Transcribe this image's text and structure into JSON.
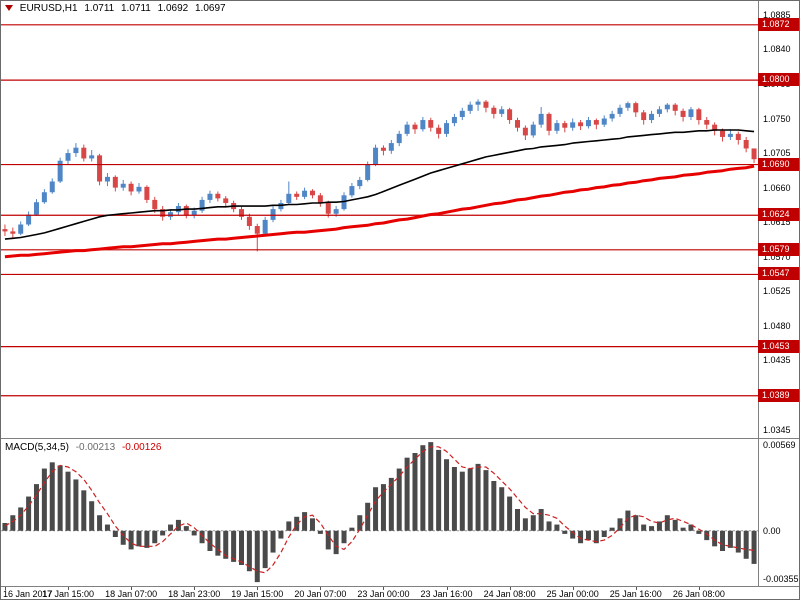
{
  "header": {
    "symbol_period": "EURUSD,H1",
    "open": "1.0711",
    "high": "1.0711",
    "low": "1.0692",
    "close": "1.0697"
  },
  "macd_header": {
    "name": "MACD(5,34,5)",
    "main_value": "-0.00213",
    "signal_value": "-0.00126"
  },
  "colors": {
    "background": "#ffffff",
    "up_candle": "#4f86c6",
    "down_candle": "#d94646",
    "level_line": "#c00000",
    "badge_bg": "#c00000",
    "ma_fast": "#000000",
    "ma_slow": "#e60000",
    "macd_histogram": "#4a4a4a",
    "macd_signal": "#cc2222"
  },
  "chart_data": [
    {
      "type": "candlestick",
      "title": "EURUSD,H1",
      "y_range": [
        1.0334,
        1.0903
      ],
      "y_axis_ticks": [
        "1.0885",
        "1.0840",
        "1.0795",
        "1.0750",
        "1.0705",
        "1.0660",
        "1.0615",
        "1.0570",
        "1.0525",
        "1.0480",
        "1.0435",
        "1.0345"
      ],
      "levels": [
        "1.0872",
        "1.0800",
        "1.0690",
        "1.0624",
        "1.0579",
        "1.0547",
        "1.0453",
        "1.0389"
      ],
      "x_tick_labels": [
        "16 Jan 2017",
        "17 Jan 15:00",
        "18 Jan 07:00",
        "18 Jan 23:00",
        "19 Jan 15:00",
        "20 Jan 07:00",
        "23 Jan 00:00",
        "23 Jan 16:00",
        "24 Jan 08:00",
        "25 Jan 00:00",
        "25 Jan 16:00",
        "26 Jan 08:00"
      ],
      "x_tick_candle_indices": [
        0,
        8,
        16,
        24,
        32,
        40,
        48,
        56,
        64,
        72,
        80,
        88
      ],
      "colors": {
        "up": "#4f86c6",
        "down": "#d94646",
        "level": "#c00000"
      },
      "candles_ohlc": [
        [
          1.0606,
          1.0612,
          1.0597,
          1.0603
        ],
        [
          1.0603,
          1.0608,
          1.0595,
          1.06
        ],
        [
          1.06,
          1.0616,
          1.0598,
          1.0612
        ],
        [
          1.0612,
          1.0629,
          1.061,
          1.0625
        ],
        [
          1.0625,
          1.0645,
          1.0623,
          1.0641
        ],
        [
          1.0641,
          1.0658,
          1.0639,
          1.0654
        ],
        [
          1.0654,
          1.0672,
          1.0652,
          1.0668
        ],
        [
          1.0668,
          1.0699,
          1.0666,
          1.0695
        ],
        [
          1.0695,
          1.071,
          1.069,
          1.0705
        ],
        [
          1.0705,
          1.0718,
          1.07,
          1.0712
        ],
        [
          1.0712,
          1.0716,
          1.0694,
          1.0698
        ],
        [
          1.0698,
          1.0709,
          1.0694,
          1.0702
        ],
        [
          1.0702,
          1.0704,
          1.0663,
          1.0668
        ],
        [
          1.0668,
          1.0679,
          1.0662,
          1.0674
        ],
        [
          1.0674,
          1.0676,
          1.0655,
          1.066
        ],
        [
          1.066,
          1.067,
          1.0656,
          1.0665
        ],
        [
          1.0665,
          1.0668,
          1.065,
          1.0655
        ],
        [
          1.0655,
          1.0666,
          1.0652,
          1.0661
        ],
        [
          1.0661,
          1.0663,
          1.064,
          1.0644
        ],
        [
          1.0644,
          1.0648,
          1.0627,
          1.0632
        ],
        [
          1.0632,
          1.0636,
          1.0617,
          1.0622
        ],
        [
          1.0622,
          1.0632,
          1.0618,
          1.0628
        ],
        [
          1.0628,
          1.064,
          1.0624,
          1.0636
        ],
        [
          1.0636,
          1.0638,
          1.062,
          1.0624
        ],
        [
          1.0624,
          1.0634,
          1.062,
          1.063
        ],
        [
          1.063,
          1.0648,
          1.0627,
          1.0644
        ],
        [
          1.0644,
          1.0656,
          1.064,
          1.0652
        ],
        [
          1.0652,
          1.0655,
          1.0642,
          1.0646
        ],
        [
          1.0646,
          1.0649,
          1.0636,
          1.064
        ],
        [
          1.064,
          1.0643,
          1.0628,
          1.0632
        ],
        [
          1.0632,
          1.0635,
          1.0618,
          1.0622
        ],
        [
          1.0622,
          1.0626,
          1.0605,
          1.061
        ],
        [
          1.061,
          1.0613,
          1.0577,
          1.06
        ],
        [
          1.06,
          1.0622,
          1.0597,
          1.0618
        ],
        [
          1.0618,
          1.0636,
          1.0615,
          1.0632
        ],
        [
          1.0632,
          1.0644,
          1.0629,
          1.064
        ],
        [
          1.064,
          1.0668,
          1.0638,
          1.0652
        ],
        [
          1.0652,
          1.0655,
          1.0644,
          1.0648
        ],
        [
          1.0648,
          1.066,
          1.0645,
          1.0656
        ],
        [
          1.0656,
          1.0658,
          1.0646,
          1.065
        ],
        [
          1.065,
          1.0653,
          1.0635,
          1.064
        ],
        [
          1.064,
          1.0643,
          1.0621,
          1.0626
        ],
        [
          1.0626,
          1.0636,
          1.0622,
          1.0632
        ],
        [
          1.0632,
          1.0654,
          1.063,
          1.065
        ],
        [
          1.065,
          1.0666,
          1.0647,
          1.0662
        ],
        [
          1.0662,
          1.0674,
          1.0658,
          1.067
        ],
        [
          1.067,
          1.0694,
          1.0668,
          1.069
        ],
        [
          1.069,
          1.0716,
          1.0688,
          1.0712
        ],
        [
          1.0712,
          1.0715,
          1.0702,
          1.0708
        ],
        [
          1.0708,
          1.0722,
          1.0704,
          1.0718
        ],
        [
          1.0718,
          1.0734,
          1.0714,
          1.073
        ],
        [
          1.073,
          1.0746,
          1.0727,
          1.0742
        ],
        [
          1.0742,
          1.0745,
          1.073,
          1.0736
        ],
        [
          1.0736,
          1.0752,
          1.0733,
          1.0748
        ],
        [
          1.0748,
          1.0751,
          1.0733,
          1.0738
        ],
        [
          1.0738,
          1.0742,
          1.0724,
          1.073
        ],
        [
          1.073,
          1.0748,
          1.0726,
          1.0744
        ],
        [
          1.0744,
          1.0756,
          1.074,
          1.0752
        ],
        [
          1.0752,
          1.0764,
          1.0748,
          1.076
        ],
        [
          1.076,
          1.0772,
          1.0756,
          1.0768
        ],
        [
          1.0768,
          1.0775,
          1.076,
          1.0772
        ],
        [
          1.0772,
          1.0774,
          1.0758,
          1.0764
        ],
        [
          1.0764,
          1.0767,
          1.075,
          1.0756
        ],
        [
          1.0756,
          1.0766,
          1.0752,
          1.0762
        ],
        [
          1.0762,
          1.0764,
          1.0743,
          1.0748
        ],
        [
          1.0748,
          1.0751,
          1.0733,
          1.0738
        ],
        [
          1.0738,
          1.0741,
          1.0722,
          1.0728
        ],
        [
          1.0728,
          1.0746,
          1.0725,
          1.0742
        ],
        [
          1.0742,
          1.0765,
          1.0738,
          1.0756
        ],
        [
          1.0756,
          1.0758,
          1.0728,
          1.0734
        ],
        [
          1.0734,
          1.0748,
          1.073,
          1.0744
        ],
        [
          1.0744,
          1.0747,
          1.0732,
          1.0738
        ],
        [
          1.0738,
          1.075,
          1.0734,
          1.0745
        ],
        [
          1.0745,
          1.0748,
          1.0735,
          1.074
        ],
        [
          1.074,
          1.0752,
          1.0737,
          1.0748
        ],
        [
          1.0748,
          1.075,
          1.0736,
          1.0742
        ],
        [
          1.0742,
          1.0754,
          1.0739,
          1.075
        ],
        [
          1.075,
          1.076,
          1.0746,
          1.0756
        ],
        [
          1.0756,
          1.0768,
          1.0752,
          1.0764
        ],
        [
          1.0764,
          1.0772,
          1.076,
          1.077
        ],
        [
          1.077,
          1.0772,
          1.0752,
          1.0758
        ],
        [
          1.0758,
          1.0761,
          1.0742,
          1.0748
        ],
        [
          1.0748,
          1.076,
          1.0744,
          1.0756
        ],
        [
          1.0756,
          1.0766,
          1.0752,
          1.0762
        ],
        [
          1.0762,
          1.077,
          1.0758,
          1.0768
        ],
        [
          1.0768,
          1.077,
          1.0754,
          1.076
        ],
        [
          1.076,
          1.0763,
          1.0746,
          1.0752
        ],
        [
          1.0752,
          1.0765,
          1.0748,
          1.0762
        ],
        [
          1.0762,
          1.0764,
          1.0742,
          1.0748
        ],
        [
          1.0748,
          1.0752,
          1.0736,
          1.0742
        ],
        [
          1.0742,
          1.0745,
          1.0728,
          1.0734
        ],
        [
          1.0734,
          1.0737,
          1.072,
          1.0726
        ],
        [
          1.0726,
          1.0736,
          1.0722,
          1.073
        ],
        [
          1.073,
          1.0733,
          1.0716,
          1.0722
        ],
        [
          1.0722,
          1.0726,
          1.0706,
          1.0711
        ],
        [
          1.0711,
          1.0711,
          1.0692,
          1.0697
        ]
      ],
      "overlays": [
        {
          "name": "ma-fast-line",
          "color": "#000000",
          "width": 1.6,
          "values": [
            1.0593,
            1.0594,
            1.0595,
            1.0597,
            1.0599,
            1.0601,
            1.0604,
            1.0607,
            1.061,
            1.0613,
            1.0616,
            1.0619,
            1.0622,
            1.0624,
            1.0625,
            1.0626,
            1.0627,
            1.0628,
            1.0629,
            1.063,
            1.063,
            1.0631,
            1.0631,
            1.0632,
            1.0632,
            1.0633,
            1.0634,
            1.0635,
            1.0635,
            1.0636,
            1.0636,
            1.0636,
            1.0636,
            1.0636,
            1.0637,
            1.0637,
            1.0638,
            1.0638,
            1.0639,
            1.064,
            1.064,
            1.0641,
            1.0641,
            1.0642,
            1.0644,
            1.0646,
            1.0648,
            1.0651,
            1.0655,
            1.0659,
            1.0663,
            1.0667,
            1.0671,
            1.0675,
            1.0679,
            1.0682,
            1.0685,
            1.0688,
            1.0691,
            1.0694,
            1.0697,
            1.07,
            1.0702,
            1.0704,
            1.0706,
            1.0708,
            1.071,
            1.0711,
            1.0713,
            1.0714,
            1.0715,
            1.0716,
            1.0718,
            1.0719,
            1.072,
            1.0721,
            1.0722,
            1.0723,
            1.0724,
            1.0726,
            1.0727,
            1.0728,
            1.0729,
            1.073,
            1.0731,
            1.0732,
            1.0732,
            1.0733,
            1.0734,
            1.0734,
            1.0735,
            1.0735,
            1.0735,
            1.0735,
            1.0734,
            1.0733
          ]
        },
        {
          "name": "ma-slow-line",
          "color": "#e60000",
          "width": 3,
          "values": [
            1.057,
            1.0571,
            1.0572,
            1.0572,
            1.0573,
            1.0574,
            1.0575,
            1.0576,
            1.0577,
            1.0578,
            1.0578,
            1.0579,
            1.058,
            1.0581,
            1.0582,
            1.0583,
            1.0583,
            1.0584,
            1.0585,
            1.0586,
            1.0587,
            1.0587,
            1.0588,
            1.0589,
            1.059,
            1.0591,
            1.0592,
            1.0593,
            1.0593,
            1.0594,
            1.0595,
            1.0596,
            1.0597,
            1.0598,
            1.0599,
            1.06,
            1.0601,
            1.0602,
            1.0602,
            1.0603,
            1.0604,
            1.0605,
            1.0606,
            1.0608,
            1.0609,
            1.061,
            1.0611,
            1.0613,
            1.0614,
            1.0616,
            1.0618,
            1.0619,
            1.0621,
            1.0623,
            1.0625,
            1.0626,
            1.0628,
            1.063,
            1.0632,
            1.0633,
            1.0635,
            1.0637,
            1.0639,
            1.064,
            1.0642,
            1.0644,
            1.0645,
            1.0647,
            1.0649,
            1.065,
            1.0652,
            1.0654,
            1.0655,
            1.0657,
            1.0658,
            1.066,
            1.0661,
            1.0663,
            1.0664,
            1.0666,
            1.0667,
            1.0669,
            1.067,
            1.0672,
            1.0673,
            1.0674,
            1.0676,
            1.0677,
            1.0678,
            1.068,
            1.0681,
            1.0682,
            1.0684,
            1.0685,
            1.0686,
            1.0688
          ]
        }
      ]
    },
    {
      "type": "bar",
      "title": "MACD(5,34,5)",
      "current_main": -0.00213,
      "current_signal": -0.00126,
      "y_range": [
        -0.00355,
        0.0059
      ],
      "y_axis_ticks": [
        "0.00569",
        "0.00",
        "-0.00355"
      ],
      "colors": {
        "histogram": "#4a4a4a",
        "signal": "#cc2222",
        "zero_line": "#999999"
      },
      "histogram": [
        0.0005,
        0.001,
        0.0015,
        0.0022,
        0.003,
        0.004,
        0.0044,
        0.0042,
        0.0038,
        0.0033,
        0.0026,
        0.0019,
        0.001,
        0.0004,
        -0.0004,
        -0.0009,
        -0.0012,
        -0.001,
        -0.0011,
        -0.0008,
        -0.0003,
        0.0004,
        0.0007,
        0.0003,
        -0.0003,
        -0.0008,
        -0.0013,
        -0.0016,
        -0.0018,
        -0.002,
        -0.0022,
        -0.0026,
        -0.0033,
        -0.0024,
        -0.0014,
        -0.0005,
        0.0006,
        0.0009,
        0.0012,
        0.0008,
        -0.0002,
        -0.0012,
        -0.0015,
        -0.0008,
        0.0002,
        0.001,
        0.0018,
        0.0028,
        0.003,
        0.0034,
        0.004,
        0.0047,
        0.005,
        0.0055,
        0.0057,
        0.0052,
        0.0046,
        0.0041,
        0.0038,
        0.004,
        0.0043,
        0.0039,
        0.0032,
        0.0028,
        0.0022,
        0.0014,
        0.0008,
        0.001,
        0.0014,
        0.0006,
        0.0004,
        -0.0002,
        -0.0005,
        -0.0008,
        -0.0006,
        -0.0008,
        -0.0004,
        0.0002,
        0.0008,
        0.0013,
        0.001,
        0.0004,
        0.0003,
        0.0006,
        0.001,
        0.0007,
        0.0002,
        0.0004,
        -0.0002,
        -0.0006,
        -0.001,
        -0.0013,
        -0.0011,
        -0.0014,
        -0.0018,
        -0.00213
      ],
      "signal": [
        0.0003,
        0.0006,
        0.001,
        0.0016,
        0.0023,
        0.0031,
        0.0038,
        0.0042,
        0.0041,
        0.0038,
        0.0033,
        0.0026,
        0.0018,
        0.0011,
        0.0003,
        -0.0003,
        -0.0008,
        -0.001,
        -0.001,
        -0.001,
        -0.0007,
        -0.0002,
        0.0003,
        0.0005,
        0.0002,
        -0.0003,
        -0.0008,
        -0.0012,
        -0.0016,
        -0.0018,
        -0.002,
        -0.0023,
        -0.0026,
        -0.0027,
        -0.0022,
        -0.0014,
        -0.0004,
        0.0004,
        0.0009,
        0.001,
        0.0005,
        -0.0003,
        -0.001,
        -0.0012,
        -0.0007,
        0.0001,
        0.001,
        0.0019,
        0.0025,
        0.003,
        0.0035,
        0.0041,
        0.0046,
        0.0051,
        0.0054,
        0.0054,
        0.0051,
        0.0046,
        0.0041,
        0.004,
        0.0041,
        0.0041,
        0.0037,
        0.0032,
        0.0027,
        0.0021,
        0.0015,
        0.0011,
        0.0011,
        0.001,
        0.0008,
        0.0003,
        -0.0001,
        -0.0005,
        -0.0006,
        -0.0007,
        -0.0006,
        -0.0003,
        0.0002,
        0.0008,
        0.001,
        0.0009,
        0.0006,
        0.0005,
        0.0007,
        0.0008,
        0.0006,
        0.0004,
        0.0001,
        -0.0002,
        -0.0006,
        -0.0009,
        -0.001,
        -0.0011,
        -0.0012,
        -0.00126
      ]
    }
  ]
}
